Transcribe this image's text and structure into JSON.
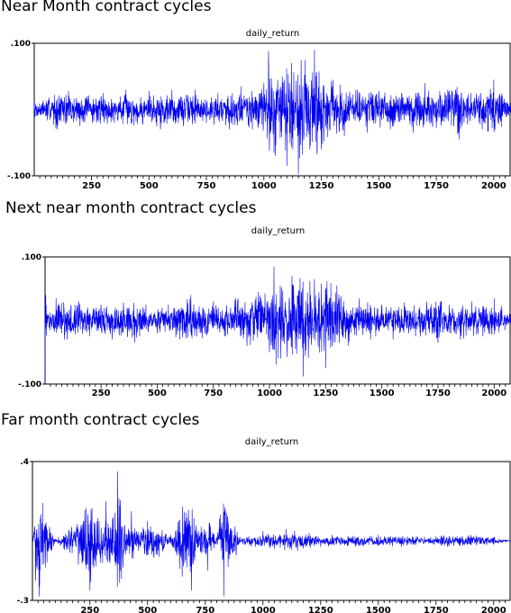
{
  "captions": [
    "Near Month contract cycles",
    "Next near month contract cycles",
    "Far month contract cycles"
  ],
  "chart_data": [
    {
      "type": "line",
      "title": "daily_return",
      "color": "#0000ee",
      "x_range": [
        1,
        2075
      ],
      "ylim": [
        -0.1,
        0.1
      ],
      "y_tick_labels": [
        ".100",
        "-.100"
      ],
      "x_tick_labels": [
        "250",
        "500",
        "750",
        "1000",
        "1250",
        "1500",
        "1750",
        "2000"
      ],
      "x_tick_values": [
        250,
        500,
        750,
        1000,
        1250,
        1500,
        1750,
        2000
      ],
      "grid": false,
      "series": [
        {
          "x": [
            1,
            100,
            150,
            200,
            300,
            350,
            400,
            450,
            500,
            550,
            600,
            650,
            700,
            750,
            800,
            850,
            900,
            950,
            1000,
            1020,
            1050,
            1080,
            1100,
            1120,
            1150,
            1180,
            1200,
            1220,
            1250,
            1300,
            1350,
            1400,
            1450,
            1500,
            1550,
            1600,
            1650,
            1700,
            1750,
            1800,
            1850,
            1900,
            1950,
            2000,
            2075
          ],
          "y": [
            0.012,
            -0.03,
            0.028,
            -0.025,
            0.025,
            -0.02,
            0.03,
            -0.022,
            0.028,
            -0.03,
            0.03,
            -0.025,
            0.03,
            -0.02,
            0.025,
            -0.03,
            0.035,
            -0.03,
            0.04,
            0.088,
            -0.07,
            0.05,
            -0.085,
            0.07,
            -0.098,
            0.075,
            -0.06,
            0.09,
            -0.06,
            0.045,
            -0.04,
            0.03,
            -0.035,
            0.028,
            -0.03,
            0.025,
            -0.035,
            0.04,
            -0.028,
            0.03,
            -0.045,
            0.025,
            -0.03,
            0.045,
            0.01
          ]
        }
      ]
    },
    {
      "type": "line",
      "title": "daily_return",
      "color": "#0000ee",
      "x_range": [
        1,
        2075
      ],
      "ylim": [
        -0.1,
        0.1
      ],
      "y_tick_labels": [
        ".100",
        "-.100"
      ],
      "x_tick_labels": [
        "250",
        "500",
        "750",
        "1000",
        "1250",
        "1500",
        "1750",
        "2000"
      ],
      "x_tick_values": [
        250,
        500,
        750,
        1000,
        1250,
        1500,
        1750,
        2000
      ],
      "grid": false,
      "series": [
        {
          "x": [
            1,
            10,
            50,
            100,
            150,
            200,
            250,
            300,
            350,
            400,
            450,
            500,
            550,
            600,
            650,
            700,
            750,
            800,
            850,
            900,
            950,
            1000,
            1020,
            1050,
            1100,
            1150,
            1200,
            1250,
            1300,
            1350,
            1400,
            1450,
            1500,
            1550,
            1600,
            1650,
            1700,
            1750,
            1800,
            1850,
            1900,
            1950,
            2000,
            2075
          ],
          "y": [
            -0.098,
            0.01,
            0.035,
            -0.03,
            0.03,
            -0.025,
            0.025,
            -0.03,
            0.028,
            -0.035,
            0.025,
            -0.02,
            0.025,
            -0.03,
            0.04,
            -0.028,
            0.03,
            -0.025,
            0.035,
            -0.04,
            0.045,
            -0.05,
            0.085,
            -0.06,
            0.07,
            -0.088,
            0.065,
            -0.075,
            0.055,
            -0.04,
            0.035,
            -0.03,
            0.025,
            -0.03,
            0.028,
            -0.025,
            0.03,
            -0.035,
            0.025,
            -0.03,
            0.03,
            -0.025,
            0.035,
            0.01
          ]
        }
      ]
    },
    {
      "type": "line",
      "title": "daily_return",
      "color": "#0000ee",
      "x_range": [
        1,
        2075
      ],
      "ylim": [
        -0.3,
        0.4
      ],
      "y_tick_labels": [
        ".4",
        "-.3"
      ],
      "x_tick_labels": [
        "250",
        "500",
        "750",
        "1000",
        "1250",
        "1500",
        "1750",
        "2000"
      ],
      "x_tick_values": [
        250,
        500,
        750,
        1000,
        1250,
        1500,
        1750,
        2000
      ],
      "grid": false,
      "series": [
        {
          "x": [
            1,
            15,
            30,
            100,
            200,
            250,
            290,
            320,
            350,
            370,
            400,
            430,
            460,
            500,
            550,
            600,
            650,
            690,
            720,
            760,
            800,
            830,
            900,
            1000,
            1050,
            1100,
            1150,
            1200,
            1250,
            1300,
            1400,
            1500,
            1600,
            1700,
            1800,
            1900,
            2000,
            2075
          ],
          "y": [
            0.0,
            -0.2,
            -0.28,
            0.01,
            -0.12,
            -0.25,
            0.1,
            0.2,
            0.12,
            0.35,
            0.08,
            0.15,
            -0.05,
            0.1,
            -0.08,
            0.03,
            -0.18,
            -0.25,
            0.05,
            -0.15,
            0.02,
            -0.28,
            0.02,
            0.05,
            -0.04,
            0.06,
            -0.05,
            0.04,
            -0.03,
            0.03,
            -0.03,
            0.03,
            -0.03,
            0.02,
            -0.03,
            0.03,
            -0.02,
            0.0
          ]
        }
      ]
    }
  ]
}
